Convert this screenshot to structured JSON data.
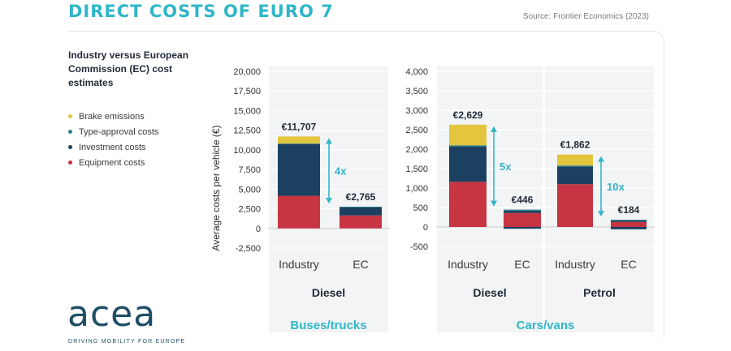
{
  "header": {
    "title": "DIRECT COSTS OF EURO 7",
    "source": "Source: Frontier Economics (2023)"
  },
  "subtitle": "Industry versus European Commission (EC) cost estimates",
  "legend": [
    {
      "label": "Brake emissions",
      "color": "#e3c63e"
    },
    {
      "label": "Type-approval costs",
      "color": "#2a7f86"
    },
    {
      "label": "Investment costs",
      "color": "#1c4060"
    },
    {
      "label": "Equipment costs",
      "color": "#c73442"
    }
  ],
  "logo": {
    "text": "acea",
    "tagline": "DRIVING MOBILITY FOR EUROPE"
  },
  "chart_data": [
    {
      "type": "bar",
      "stacked": true,
      "group_label": "Buses/trucks",
      "ylabel": "Average costs per vehicle (€)",
      "ylim": [
        -2500,
        20000
      ],
      "yticks": [
        "20,000",
        "17,500",
        "15,000",
        "12,500",
        "10,000",
        "7,500",
        "5,000",
        "2,500",
        "0",
        "-2,500"
      ],
      "grid": true,
      "subgroups": [
        {
          "label": "Diesel",
          "bars": [
            {
              "category": "Industry",
              "total_label": "€11,707",
              "segments": {
                "Equipment costs": 4150,
                "Investment costs": 6580,
                "Type-approval costs": 80,
                "Brake emissions": 897
              }
            },
            {
              "category": "EC",
              "total_label": "€2,765",
              "segments": {
                "Equipment costs": 1650,
                "Investment costs": 1050,
                "Type-approval costs": 65,
                "Brake emissions": 0
              }
            }
          ],
          "ratio_label": "4x"
        }
      ]
    },
    {
      "type": "bar",
      "stacked": true,
      "group_label": "Cars/vans",
      "ylim": [
        -500,
        4000
      ],
      "yticks": [
        "4,000",
        "3,500",
        "3,000",
        "2,500",
        "2,000",
        "1,500",
        "1,000",
        "500",
        "0",
        "-500"
      ],
      "grid": true,
      "subgroups": [
        {
          "label": "Diesel",
          "bars": [
            {
              "category": "Industry",
              "total_label": "€2,629",
              "segments": {
                "Equipment costs": 1160,
                "Investment costs": 910,
                "Type-approval costs": 30,
                "Brake emissions": 529
              }
            },
            {
              "category": "EC",
              "total_label": "€446",
              "segments": {
                "Equipment costs": 360,
                "Investment costs": 60,
                "Type-approval costs": 26,
                "Brake emissions": 0,
                "Negative": -45
              }
            }
          ],
          "ratio_label": "5x"
        },
        {
          "label": "Petrol",
          "bars": [
            {
              "category": "Industry",
              "total_label": "€1,862",
              "segments": {
                "Equipment costs": 1100,
                "Investment costs": 450,
                "Type-approval costs": 30,
                "Brake emissions": 282
              }
            },
            {
              "category": "EC",
              "total_label": "€184",
              "segments": {
                "Equipment costs": 130,
                "Investment costs": 40,
                "Type-approval costs": 14,
                "Brake emissions": 0,
                "Negative": -60
              }
            }
          ],
          "ratio_label": "10x"
        }
      ]
    }
  ]
}
